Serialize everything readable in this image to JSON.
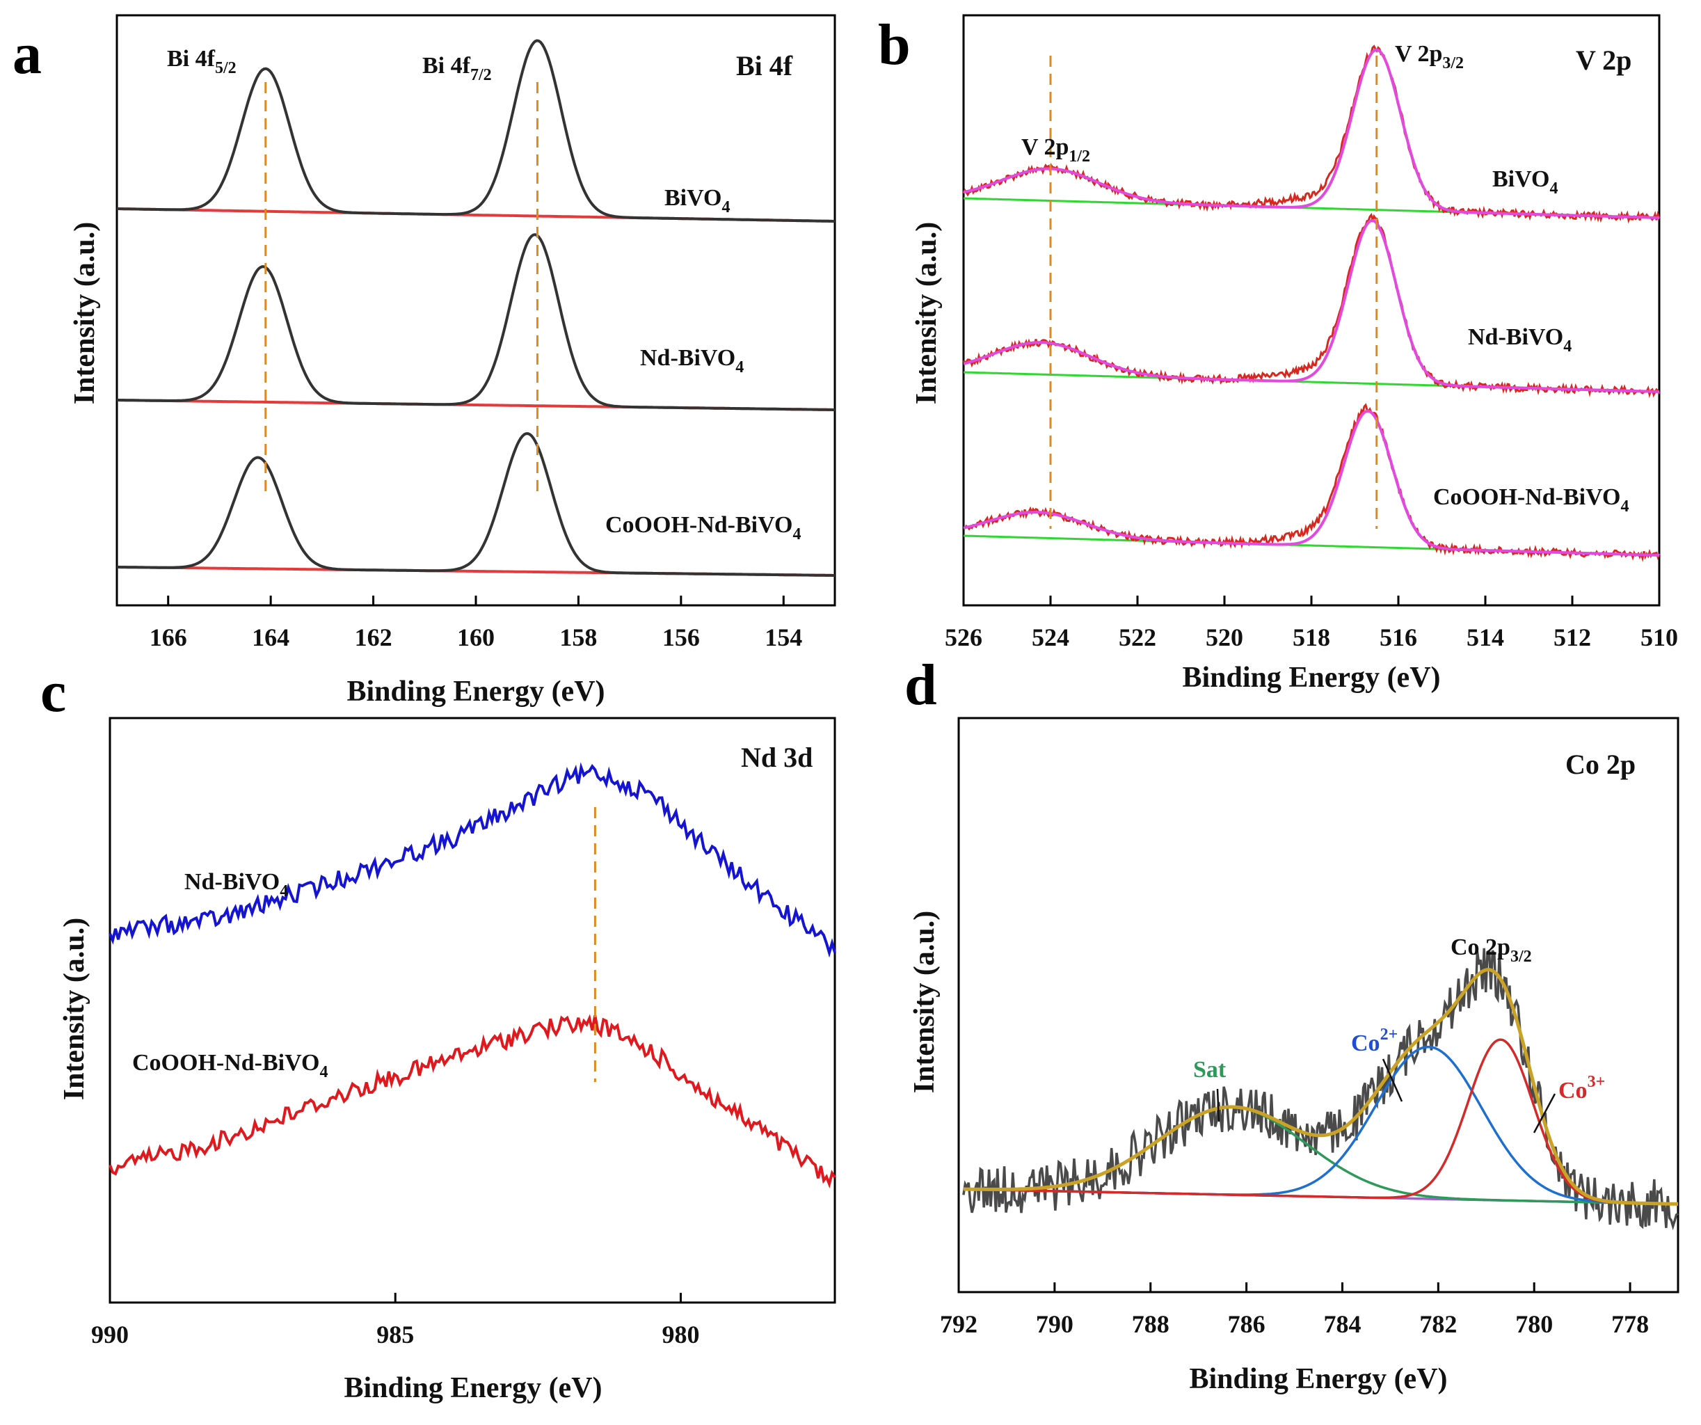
{
  "chart_data": [
    {
      "panel": "a",
      "type": "line",
      "corner_label": "Bi 4f",
      "xlabel": "Binding Energy (eV)",
      "ylabel": "Intensity (a.u.)",
      "xlim": [
        167,
        153
      ],
      "x_ticks": [
        166,
        164,
        162,
        160,
        158,
        156,
        154
      ],
      "peak_labels": [
        {
          "main": "Bi 4f",
          "sub": "5/2",
          "x": 164.1
        },
        {
          "main": "Bi 4f",
          "sub": "7/2",
          "x": 158.8
        }
      ],
      "dashed_guides": [
        164.1,
        158.8
      ],
      "series": [
        {
          "name": "BiVO",
          "sub": "4",
          "peaks": [
            {
              "center": 164.1,
              "height": 1.0,
              "fwhm": 1.1
            },
            {
              "center": 158.8,
              "height": 1.23,
              "fwhm": 1.1
            }
          ]
        },
        {
          "name": "Nd-BiVO",
          "sub": "4",
          "peaks": [
            {
              "center": 164.15,
              "height": 0.95,
              "fwhm": 1.1
            },
            {
              "center": 158.85,
              "height": 1.2,
              "fwhm": 1.1
            }
          ]
        },
        {
          "name": "CoOOH-Nd-BiVO",
          "sub": "4",
          "peaks": [
            {
              "center": 164.25,
              "height": 0.78,
              "fwhm": 1.1
            },
            {
              "center": 159.0,
              "height": 0.97,
              "fwhm": 1.1
            }
          ]
        }
      ]
    },
    {
      "panel": "b",
      "type": "line",
      "corner_label": "V 2p",
      "xlabel": "Binding Energy (eV)",
      "ylabel": "Intensity (a.u.)",
      "xlim": [
        526,
        510
      ],
      "x_ticks": [
        526,
        524,
        522,
        520,
        518,
        516,
        514,
        512,
        510
      ],
      "peak_labels": [
        {
          "main": "V 2p",
          "sub": "1/2",
          "x": 524.0
        },
        {
          "main": "V 2p",
          "sub": "3/2",
          "x": 516.5
        }
      ],
      "dashed_guides": [
        524.0,
        516.5
      ],
      "series": [
        {
          "name": "BiVO",
          "sub": "4",
          "peaks": [
            {
              "center": 524.0,
              "height": 0.2,
              "fwhm": 2.6
            },
            {
              "center": 516.5,
              "height": 1.0,
              "fwhm": 1.3
            }
          ]
        },
        {
          "name": "Nd-BiVO",
          "sub": "4",
          "peaks": [
            {
              "center": 524.2,
              "height": 0.2,
              "fwhm": 2.6
            },
            {
              "center": 516.6,
              "height": 1.02,
              "fwhm": 1.3
            }
          ]
        },
        {
          "name": "CoOOH-Nd-BiVO",
          "sub": "4",
          "peaks": [
            {
              "center": 524.3,
              "height": 0.16,
              "fwhm": 2.6
            },
            {
              "center": 516.7,
              "height": 0.85,
              "fwhm": 1.3
            }
          ]
        }
      ]
    },
    {
      "panel": "c",
      "type": "line",
      "corner_label": "Nd 3d",
      "xlabel": "Binding Energy (eV)",
      "ylabel": "Intensity (a.u.)",
      "xlim": [
        990,
        977.3
      ],
      "x_ticks": [
        990,
        985,
        980
      ],
      "dashed_guides": [
        981.5
      ],
      "series": [
        {
          "name": "Nd-BiVO",
          "sub": "4",
          "color": "#1414d2",
          "x": [
            990,
            988,
            986,
            984,
            982,
            981.5,
            980.5,
            979.5,
            978.5,
            977.3
          ],
          "y": [
            0.0,
            0.05,
            0.18,
            0.32,
            0.52,
            0.55,
            0.47,
            0.28,
            0.12,
            -0.06
          ]
        },
        {
          "name": "CoOOH-Nd-BiVO",
          "sub": "4",
          "color": "#e0191e",
          "x": [
            990,
            988,
            986,
            984,
            982.5,
            981.5,
            980.5,
            979.5,
            978.5,
            977.3
          ],
          "y": [
            0.0,
            0.1,
            0.25,
            0.38,
            0.48,
            0.5,
            0.4,
            0.25,
            0.12,
            -0.05
          ]
        }
      ]
    },
    {
      "panel": "d",
      "type": "line",
      "corner_label": "Co 2p",
      "xlabel": "Binding Energy (eV)",
      "ylabel": "Intensity (a.u.)",
      "xlim": [
        792,
        777
      ],
      "x_ticks": [
        792,
        790,
        788,
        786,
        784,
        782,
        780,
        778
      ],
      "peak_labels": [
        {
          "main": "Co 2p",
          "sub": "3/2",
          "x": 781.0
        },
        {
          "main": "Sat",
          "sub": "",
          "x": 786.7
        },
        {
          "main": "Co",
          "sup": "2+",
          "x": 783.2
        },
        {
          "main": "Co",
          "sup": "3+",
          "x": 779.4
        }
      ],
      "series": [
        {
          "name": "Raw",
          "color": "#4a4a4a",
          "type": "noisy"
        },
        {
          "name": "Sat",
          "color": "#2e9a5a",
          "center": 786.3,
          "height": 0.3,
          "fwhm": 3.6
        },
        {
          "name": "Co2+",
          "color": "#1f6fd0",
          "center": 782.2,
          "height": 0.52,
          "fwhm": 2.6
        },
        {
          "name": "Co3+",
          "color": "#d42a2a",
          "center": 780.7,
          "height": 0.55,
          "fwhm": 1.6
        },
        {
          "name": "Envelope",
          "color": "#c9a227"
        },
        {
          "name": "Background",
          "color": "#a35fd0"
        }
      ]
    }
  ]
}
